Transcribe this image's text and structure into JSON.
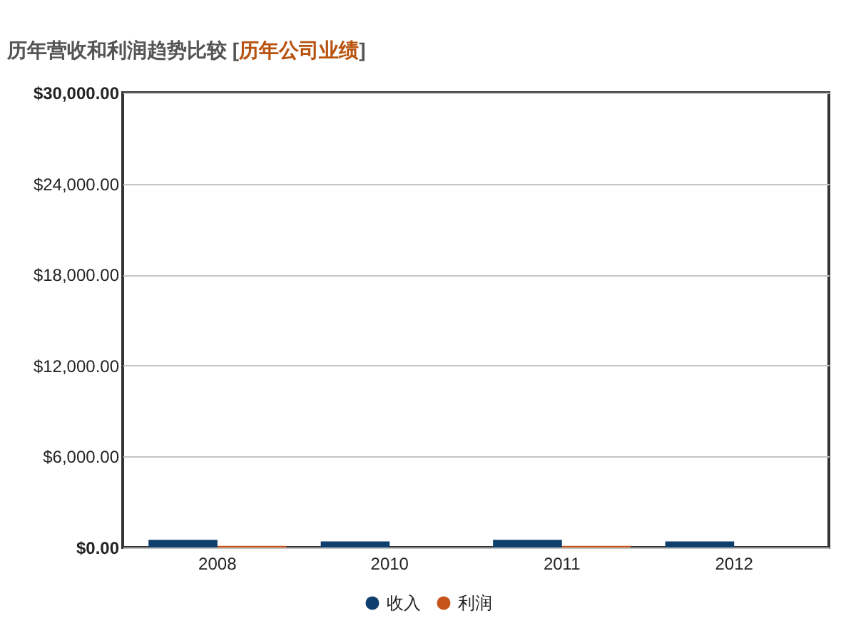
{
  "chart_data": {
    "type": "bar",
    "title": "历年营收和利润趋势比较 [历年公司业绩]",
    "categories": [
      "2008",
      "2010",
      "2011",
      "2012"
    ],
    "series": [
      {
        "name": "收入",
        "color": "#0e3f6c",
        "values": [
          500,
          400,
          500,
          400
        ]
      },
      {
        "name": "利润",
        "color": "#c5531a",
        "values": [
          100,
          null,
          100,
          null
        ]
      }
    ],
    "ylim": [
      0,
      30000
    ],
    "yticks": [
      {
        "value": 0,
        "label": "$0.00"
      },
      {
        "value": 6000,
        "label": "$6,000.00"
      },
      {
        "value": 12000,
        "label": "$12,000.00"
      },
      {
        "value": 18000,
        "label": "$18,000.00"
      },
      {
        "value": 24000,
        "label": "$24,000.00"
      },
      {
        "value": 30000,
        "label": "$30,000.00"
      }
    ],
    "grid": "y",
    "legend": "bottom"
  }
}
